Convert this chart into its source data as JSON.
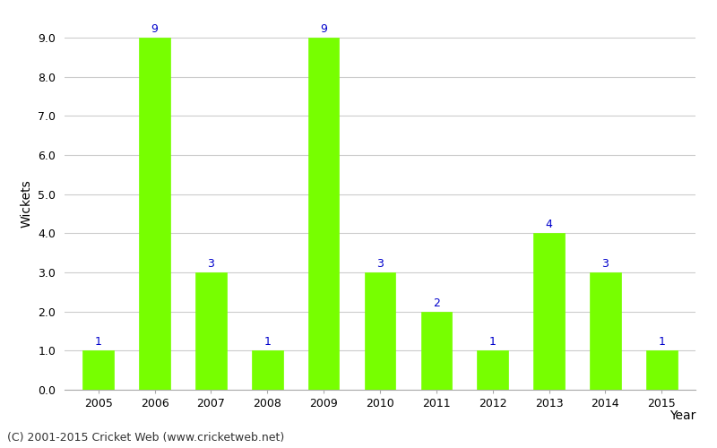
{
  "years": [
    "2005",
    "2006",
    "2007",
    "2008",
    "2009",
    "2010",
    "2011",
    "2012",
    "2013",
    "2014",
    "2015"
  ],
  "values": [
    1,
    9,
    3,
    1,
    9,
    3,
    2,
    1,
    4,
    3,
    1
  ],
  "bar_color": "#77ff00",
  "bar_edge_color": "#77ff00",
  "xlabel": "Year",
  "ylabel": "Wickets",
  "ylim": [
    0,
    9.5
  ],
  "yticks": [
    0.0,
    1.0,
    2.0,
    3.0,
    4.0,
    5.0,
    6.0,
    7.0,
    8.0,
    9.0
  ],
  "label_color": "#0000cc",
  "label_fontsize": 9,
  "axis_label_fontsize": 10,
  "tick_fontsize": 9,
  "footer_text": "(C) 2001-2015 Cricket Web (www.cricketweb.net)",
  "footer_fontsize": 9,
  "background_color": "#ffffff",
  "grid_color": "#cccccc",
  "bar_width": 0.55
}
